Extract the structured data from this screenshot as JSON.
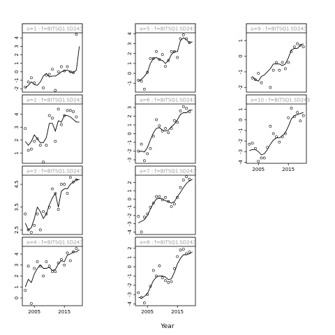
{
  "chart_data": {
    "type": "scatter",
    "xlabel": "Year",
    "xticks": [
      2005,
      2015
    ],
    "xlim": [
      2001,
      2021
    ],
    "panels": [
      {
        "label": "a=1 : f=BITSQ1.SD243",
        "ylim": [
          -2.4,
          4.6
        ],
        "yticks": [
          -2,
          -1,
          0,
          1,
          2,
          3,
          4
        ],
        "points": {
          "x": [
            2002,
            2003,
            2004,
            2005,
            2008,
            2009,
            2010,
            2011,
            2012,
            2013,
            2014,
            2015,
            2016,
            2017,
            2018,
            2019
          ],
          "y": [
            -1.8,
            -1.2,
            -0.7,
            -1.3,
            -1.9,
            -0.4,
            -0.3,
            0.3,
            -2.2,
            0,
            0.6,
            0.1,
            0.6,
            0,
            -0.1,
            4.4
          ]
        },
        "line": {
          "x": [
            2002,
            2003,
            2004,
            2005,
            2006,
            2007,
            2008,
            2009,
            2010,
            2011,
            2012,
            2013,
            2014,
            2015,
            2016,
            2017,
            2018,
            2019,
            2020
          ],
          "y": [
            -1.9,
            -1.6,
            -1.2,
            -1.5,
            -1.6,
            -1.2,
            -0.5,
            -0.2,
            -0.6,
            -0.5,
            -0.5,
            -0.3,
            0,
            0.1,
            0.2,
            0,
            -0.1,
            0.2,
            3.0
          ]
        }
      },
      {
        "label": "a=2 : f=BITSQ1.SD243",
        "ylim": [
          0.2,
          4.8
        ],
        "yticks": [
          1,
          2,
          3,
          4
        ],
        "points": {
          "x": [
            2002,
            2003,
            2004,
            2005,
            2006,
            2007,
            2008,
            2009,
            2010,
            2011,
            2012,
            2013,
            2014,
            2015,
            2016,
            2017,
            2018,
            2019
          ],
          "y": [
            2.9,
            1.2,
            1.3,
            1.9,
            2.1,
            1.6,
            0.3,
            1.6,
            3.9,
            3.7,
            1.9,
            4.4,
            3.2,
            3.9,
            4.3,
            4.3,
            4.2,
            3.8
          ]
        },
        "line": {
          "x": [
            2002,
            2003,
            2004,
            2005,
            2006,
            2007,
            2008,
            2009,
            2010,
            2011,
            2012,
            2013,
            2014,
            2015,
            2016,
            2017,
            2018,
            2019,
            2020
          ],
          "y": [
            1.9,
            1.6,
            1.9,
            2.4,
            2.1,
            1.8,
            1.8,
            2.2,
            3.3,
            3.3,
            2.7,
            3.5,
            3.4,
            3.9,
            3.9,
            3.8,
            3.6,
            3.4,
            3.4
          ]
        }
      },
      {
        "label": "a=3 : f=BITSQ1.SD243",
        "ylim": [
          2.3,
          4.9
        ],
        "yticks": [
          2.5,
          3.5,
          4.5
        ],
        "points": {
          "x": [
            2002,
            2003,
            2004,
            2005,
            2006,
            2007,
            2008,
            2009,
            2010,
            2011,
            2012,
            2013,
            2014,
            2015,
            2016,
            2017,
            2018,
            2019
          ],
          "y": [
            3.2,
            2.5,
            2.4,
            2.7,
            3.2,
            2.5,
            3.3,
            3.2,
            3.5,
            4.3,
            4.1,
            3.4,
            4.5,
            4.5,
            4.1,
            4.8,
            4.6,
            4.7
          ]
        },
        "line": {
          "x": [
            2002,
            2003,
            2004,
            2005,
            2006,
            2007,
            2008,
            2009,
            2010,
            2011,
            2012,
            2013,
            2014,
            2015,
            2016,
            2017,
            2018,
            2019,
            2020
          ],
          "y": [
            2.8,
            2.5,
            2.6,
            3.0,
            3.5,
            3.3,
            3.0,
            3.2,
            3.6,
            3.9,
            4.1,
            3.5,
            4.2,
            4.3,
            4.3,
            4.5,
            4.6,
            4.7,
            4.7
          ]
        }
      },
      {
        "label": "a=4 : f=BITSQ1.SD243",
        "ylim": [
          -0.7,
          4.7
        ],
        "yticks": [
          0,
          1,
          2,
          3,
          4
        ],
        "points": {
          "x": [
            2002,
            2003,
            2004,
            2005,
            2006,
            2007,
            2008,
            2009,
            2010,
            2011,
            2012,
            2013,
            2014,
            2015,
            2016,
            2017,
            2018,
            2019
          ],
          "y": [
            0.7,
            2.9,
            -0.5,
            2.7,
            3.3,
            2.9,
            2.0,
            3.3,
            2.9,
            2.4,
            2.4,
            3.2,
            3.5,
            3.0,
            4.1,
            3.4,
            4.2,
            4.5
          ]
        },
        "line": {
          "x": [
            2002,
            2003,
            2004,
            2005,
            2006,
            2007,
            2008,
            2009,
            2010,
            2011,
            2012,
            2013,
            2014,
            2015,
            2016,
            2017,
            2018,
            2019,
            2020
          ],
          "y": [
            1.0,
            1.7,
            1.4,
            2.2,
            2.7,
            3.0,
            2.7,
            2.7,
            2.8,
            2.5,
            2.6,
            3.1,
            3.4,
            3.3,
            3.9,
            4.0,
            4.2,
            4.2,
            4.4
          ]
        }
      },
      {
        "label": "a=5 : f=BITSQ1.SD243",
        "ylim": [
          -1.9,
          4.1
        ],
        "yticks": [
          -1,
          0,
          1,
          2,
          3,
          4
        ],
        "points": {
          "x": [
            2002,
            2003,
            2004,
            2005,
            2006,
            2007,
            2008,
            2009,
            2010,
            2011,
            2012,
            2013,
            2014,
            2015,
            2016,
            2017,
            2018,
            2019
          ],
          "y": [
            -0.7,
            -0.8,
            -1.6,
            0.1,
            1.5,
            1.5,
            2.2,
            1.4,
            1.9,
            0.7,
            1.3,
            2.2,
            2.2,
            1.6,
            3.5,
            3.9,
            3.5,
            3.1
          ]
        },
        "line": {
          "x": [
            2002,
            2003,
            2004,
            2005,
            2006,
            2007,
            2008,
            2009,
            2010,
            2011,
            2012,
            2013,
            2014,
            2015,
            2016,
            2017,
            2018,
            2019,
            2020
          ],
          "y": [
            -0.8,
            -0.6,
            -0.3,
            0.1,
            1.0,
            1.5,
            1.6,
            1.4,
            1.3,
            1.0,
            1.3,
            1.9,
            2.2,
            2.2,
            3.3,
            3.6,
            3.4,
            3.1,
            3.2
          ]
        }
      },
      {
        "label": "a=6 : f=BITSQ1.SD243",
        "ylim": [
          -3.4,
          3.4
        ],
        "yticks": [
          -3,
          -2,
          -1,
          0,
          1,
          2,
          3
        ],
        "points": {
          "x": [
            2002,
            2003,
            2004,
            2005,
            2006,
            2007,
            2008,
            2009,
            2010,
            2011,
            2012,
            2013,
            2014,
            2015,
            2016,
            2017,
            2018,
            2019
          ],
          "y": [
            -2.0,
            -1.2,
            -3.1,
            -2.3,
            -1.7,
            -0.3,
            1.6,
            0.9,
            0.3,
            0.6,
            0.1,
            0.6,
            1.5,
            1.3,
            2.6,
            3.1,
            2.9,
            2.5
          ]
        },
        "line": {
          "x": [
            2002,
            2003,
            2004,
            2005,
            2006,
            2007,
            2008,
            2009,
            2010,
            2011,
            2012,
            2013,
            2014,
            2015,
            2016,
            2017,
            2018,
            2019,
            2020
          ],
          "y": [
            -2.1,
            -2.0,
            -2.1,
            -1.6,
            -0.7,
            0.1,
            0.6,
            0.7,
            0.4,
            0.3,
            0.4,
            0.8,
            1.1,
            1.6,
            2.2,
            2.4,
            2.4,
            2.7,
            2.7
          ]
        }
      },
      {
        "label": "a=7 : f=BITSQ1.SD243",
        "ylim": [
          -4.3,
          2.9
        ],
        "yticks": [
          -4,
          -3,
          -2,
          -1,
          0,
          1,
          2
        ],
        "points": {
          "x": [
            2002,
            2003,
            2004,
            2005,
            2006,
            2007,
            2008,
            2009,
            2010,
            2011,
            2012,
            2013,
            2014,
            2015,
            2016,
            2017,
            2018,
            2019
          ],
          "y": [
            -2.1,
            -4.0,
            -2.2,
            -1.8,
            -1.0,
            -0.5,
            0.3,
            0.3,
            -0.1,
            0.2,
            -0.3,
            -0.9,
            -0.6,
            0.2,
            1.4,
            2.3,
            2.7,
            2.4
          ]
        },
        "line": {
          "x": [
            2002,
            2003,
            2004,
            2005,
            2006,
            2007,
            2008,
            2009,
            2010,
            2011,
            2012,
            2013,
            2014,
            2015,
            2016,
            2017,
            2018,
            2019,
            2020
          ],
          "y": [
            -2.9,
            -2.7,
            -2.5,
            -2.0,
            -1.2,
            -0.5,
            0.0,
            0.1,
            0.0,
            -0.2,
            -0.3,
            -0.5,
            -0.3,
            0.3,
            0.8,
            1.4,
            1.9,
            2.2,
            2.4
          ]
        }
      },
      {
        "label": "a=8 : f=BITSQ1.SD243",
        "ylim": [
          -4.2,
          2.2
        ],
        "yticks": [
          -4,
          -3,
          -2,
          -1,
          0,
          1,
          2
        ],
        "points": {
          "x": [
            2002,
            2003,
            2004,
            2005,
            2006,
            2007,
            2008,
            2009,
            2010,
            2011,
            2012,
            2013,
            2014,
            2015,
            2016,
            2017,
            2018,
            2019
          ],
          "y": [
            -2.8,
            -3.3,
            -3.9,
            -3.0,
            -2.1,
            -0.4,
            -1.0,
            0.1,
            -1.2,
            -1.5,
            -1.7,
            -1.6,
            -0.2,
            1.1,
            1.8,
            1.9,
            1.4,
            1.6
          ]
        },
        "line": {
          "x": [
            2002,
            2003,
            2004,
            2005,
            2006,
            2007,
            2008,
            2009,
            2010,
            2011,
            2012,
            2013,
            2014,
            2015,
            2016,
            2017,
            2018,
            2019,
            2020
          ],
          "y": [
            -3.3,
            -3.4,
            -3.2,
            -2.9,
            -2.2,
            -1.5,
            -1.1,
            -1.0,
            -1.0,
            -1.1,
            -1.4,
            -1.3,
            -0.6,
            0.3,
            0.9,
            1.3,
            1.3,
            1.4,
            1.6
          ]
        }
      },
      {
        "label": "a=9 : f=BITSQ1.SD243",
        "ylim": [
          -2.3,
          1.5
        ],
        "yticks": [
          -2,
          -1,
          0,
          1
        ],
        "points": {
          "x": [
            2003,
            2004,
            2005,
            2006,
            2009,
            2010,
            2011,
            2012,
            2013,
            2014,
            2015,
            2016,
            2017,
            2018,
            2019,
            2020
          ],
          "y": [
            -1.4,
            -1.5,
            -1.1,
            -1.7,
            -2.0,
            -0.9,
            -0.4,
            -0.9,
            -0.4,
            -0.8,
            -0.4,
            0.3,
            0.6,
            0.8,
            0.7,
            0.6
          ]
        },
        "line": {
          "x": [
            2003,
            2004,
            2005,
            2006,
            2007,
            2008,
            2009,
            2010,
            2011,
            2012,
            2013,
            2014,
            2015,
            2016,
            2017,
            2018,
            2019,
            2020
          ],
          "y": [
            -1.3,
            -1.5,
            -1.6,
            -1.3,
            -1.2,
            -1.0,
            -0.8,
            -0.5,
            -0.5,
            -0.5,
            -0.6,
            -0.5,
            -0.1,
            0.4,
            0.5,
            0.5,
            0.7,
            0.8
          ]
        }
      },
      {
        "label": "a=10 : f=BITSQ1.SD243",
        "ylim": [
          -4.1,
          1.5
        ],
        "yticks": [
          -4,
          -3,
          -2,
          -1,
          0,
          1
        ],
        "points": {
          "x": [
            2002,
            2003,
            2004,
            2005,
            2006,
            2007,
            2008,
            2009,
            2010,
            2011,
            2012,
            2013,
            2014,
            2015,
            2016,
            2017,
            2018,
            2019,
            2020
          ],
          "y": [
            -2.3,
            -2.2,
            -2.7,
            -3.9,
            -3.6,
            -3.6,
            -2.6,
            -0.6,
            -1.3,
            -1.6,
            -2.1,
            -1.6,
            -1.3,
            0.2,
            1.1,
            0.3,
            0.7,
            -0.1,
            0.4
          ]
        },
        "line": {
          "x": [
            2002,
            2003,
            2004,
            2005,
            2006,
            2007,
            2008,
            2009,
            2010,
            2011,
            2012,
            2013,
            2014,
            2015,
            2016,
            2017,
            2018,
            2019,
            2020
          ],
          "y": [
            -2.9,
            -2.8,
            -2.8,
            -3.0,
            -3.3,
            -3.2,
            -2.8,
            -2.3,
            -1.9,
            -1.7,
            -1.7,
            -1.5,
            -1.2,
            -0.6,
            0.1,
            0.4,
            0.5,
            0.6,
            0.7
          ]
        }
      }
    ]
  }
}
